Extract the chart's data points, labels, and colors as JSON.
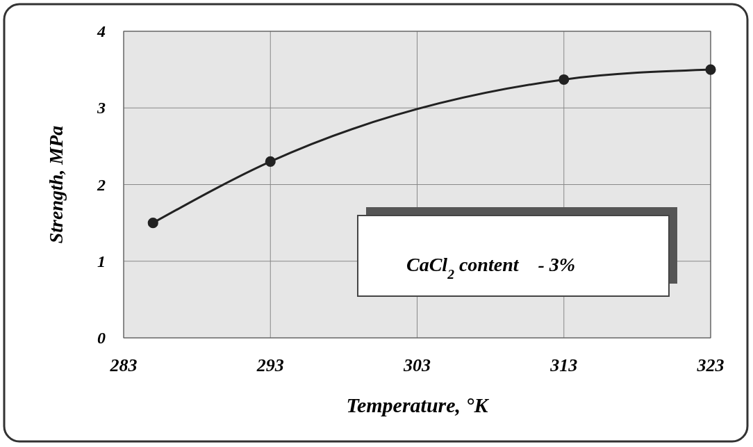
{
  "chart_data": {
    "type": "line",
    "xlabel": "Temperature, °K",
    "ylabel": "Strength, MPa",
    "annotations": [
      "CaCl$_{2}$ content    - 3%"
    ],
    "x": [
      285,
      293,
      313,
      323
    ],
    "series": [
      {
        "color": "#222222",
        "values": [
          1.5,
          2.3,
          3.37,
          3.5
        ]
      }
    ],
    "xlim": [
      283,
      323
    ],
    "xticks": [
      283,
      293,
      303,
      313,
      323
    ],
    "ylim": [
      0,
      4
    ],
    "yticks": [
      0,
      1,
      2,
      3,
      4
    ],
    "grid": true,
    "marker": "circle",
    "line_style": "solid"
  }
}
